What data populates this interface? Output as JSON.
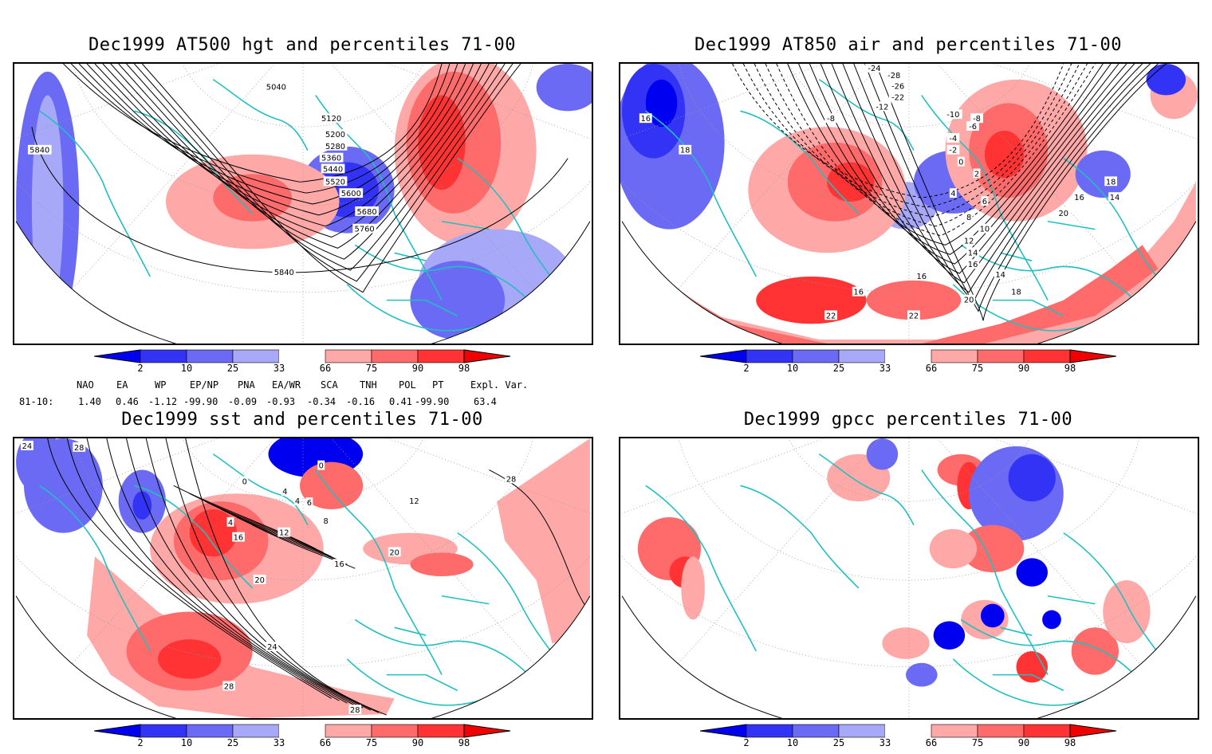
{
  "panels": [
    {
      "title": "Dec1999 AT500 hgt and percentiles 71-00",
      "contours": [
        "5040",
        "5120",
        "5200",
        "5280",
        "5360",
        "5440",
        "5520",
        "5600",
        "5680",
        "5760",
        "5840",
        "5840"
      ]
    },
    {
      "title": "Dec1999 AT850 air and percentiles 71-00",
      "contours": [
        "-24",
        "-28",
        "-26",
        "-22",
        "-12",
        "-8",
        "-10",
        "-8",
        "-6",
        "-4",
        "-2",
        "0",
        "2",
        "4",
        "6",
        "8",
        "10",
        "12",
        "14",
        "16",
        "16",
        "14",
        "16",
        "18",
        "20",
        "22",
        "22",
        "16",
        "18",
        "20",
        "16",
        "18",
        "14"
      ]
    },
    {
      "title": "Dec1999 sst and percentiles 71-00",
      "contours": [
        "24",
        "28",
        "0",
        "0",
        "4",
        "4",
        "4",
        "6",
        "8",
        "12",
        "12",
        "16",
        "20",
        "16",
        "20",
        "24",
        "28",
        "28",
        "28"
      ]
    },
    {
      "title": "Dec1999 gpcc percentiles 71-00",
      "contours": []
    }
  ],
  "colorbar": {
    "labels": [
      "2",
      "10",
      "25",
      "33",
      "66",
      "75",
      "90",
      "98"
    ],
    "colors": [
      "#0000f0",
      "#3333f5",
      "#6a6af5",
      "#a8a8f8",
      "#ffffff",
      "#ffa8a8",
      "#ff6a6a",
      "#ff3333",
      "#f00000"
    ]
  },
  "teleconnections": {
    "headers": [
      "NAO",
      "EA",
      "WP",
      "EP/NP",
      "PNA",
      "EA/WR",
      "SCA",
      "TNH",
      "POL",
      "PT",
      "Expl. Var."
    ],
    "row_label": "81-10:",
    "values": [
      "1.40",
      "0.46",
      "-1.12",
      "-99.90",
      "-0.09",
      "-0.93",
      "-0.34",
      "-0.16",
      "0.41",
      "-99.90",
      "63.4"
    ]
  },
  "colors": {
    "coast": "#20c0c0",
    "contour": "#000000",
    "grid": "#9a9a9a"
  }
}
